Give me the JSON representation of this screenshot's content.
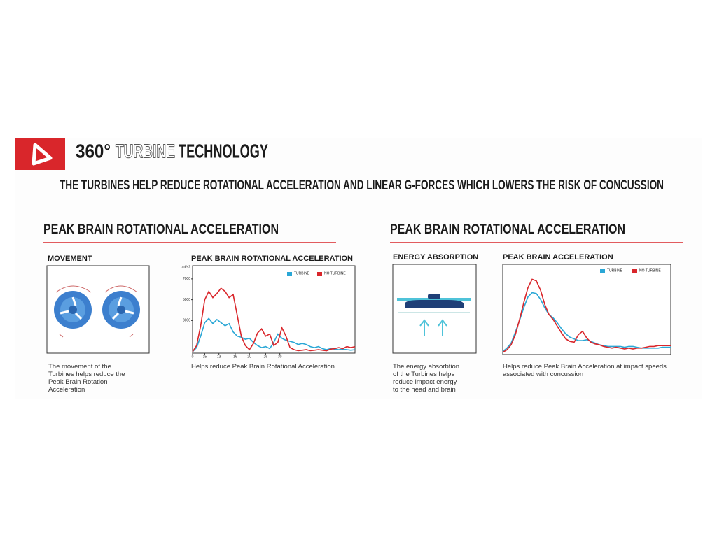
{
  "header": {
    "title_parts": [
      "360°",
      "TURBINE",
      "TECHNOLOGY"
    ],
    "subtitle": "THE TURBINES HELP REDUCE ROTATIONAL ACCELERATION AND LINEAR G-FORCES WHICH LOWERS THE RISK OF CONCUSSION"
  },
  "sections": [
    {
      "heading": "PEAK BRAIN ROTATIONAL ACCELERATION",
      "illustration": {
        "label": "MOVEMENT",
        "caption": "The movement of the Turbines helps reduce the Peak Brain Rotation Acceleration"
      },
      "chart_data": {
        "type": "line",
        "title": "PEAK BRAIN ROTATIONAL ACCELERATION",
        "y_label": "rad/s2",
        "caption": "Helps reduce Peak Brain Rotational Acceleration",
        "x": [
          0,
          1,
          2,
          3,
          4,
          5,
          6,
          7,
          8,
          9,
          10,
          11,
          12,
          13,
          14,
          15,
          16,
          17,
          18,
          19,
          20,
          21,
          22,
          23,
          24,
          25,
          26,
          27,
          28,
          29,
          30,
          31,
          32,
          33,
          34,
          35,
          36,
          37,
          38,
          39,
          40
        ],
        "xlim": [
          0,
          40
        ],
        "xticks": [
          {
            "value": 0,
            "label": "0"
          },
          {
            "value": 3,
            "label": "15"
          },
          {
            "value": 6.5,
            "label": "13"
          },
          {
            "value": 10.5,
            "label": "16"
          },
          {
            "value": 14,
            "label": "20"
          },
          {
            "value": 18,
            "label": "26"
          },
          {
            "value": 21.5,
            "label": "30"
          }
        ],
        "ylim": [
          0,
          8000
        ],
        "yticks": [
          3000,
          5000,
          7000
        ],
        "series": [
          {
            "name": "TURBINE",
            "color": "#2aa7d6",
            "values": [
              0,
              400,
              1500,
              2800,
              3200,
              2700,
              3100,
              2800,
              2500,
              2700,
              1900,
              1500,
              1400,
              1200,
              1300,
              900,
              600,
              400,
              500,
              300,
              900,
              1700,
              1300,
              1100,
              1000,
              900,
              700,
              800,
              700,
              500,
              400,
              500,
              300,
              200,
              300,
              250,
              200,
              250,
              200,
              150,
              200
            ]
          },
          {
            "name": "NO TURBINE",
            "color": "#d9262b",
            "values": [
              0,
              600,
              2500,
              5000,
              5800,
              5200,
              5600,
              6100,
              5800,
              5200,
              5500,
              3500,
              1500,
              600,
              200,
              800,
              1800,
              2200,
              1500,
              1700,
              600,
              900,
              2300,
              1500,
              400,
              200,
              100,
              150,
              200,
              100,
              150,
              200,
              150,
              100,
              250,
              300,
              400,
              300,
              500,
              400,
              500
            ]
          }
        ]
      }
    },
    {
      "heading": "PEAK BRAIN ROTATIONAL ACCELERATION",
      "illustration": {
        "label": "ENERGY ABSORPTION",
        "caption": "The energy absorbtion of the Turbines helps reduce impact energy to the head and brain"
      },
      "chart_data": {
        "type": "line",
        "title": "PEAK BRAIN ACCELERATION",
        "caption": "Helps reduce Peak Brain Acceleration at impact speeds associated with concussion",
        "x": [
          0,
          1,
          2,
          3,
          4,
          5,
          6,
          7,
          8,
          9,
          10,
          11,
          12,
          13,
          14,
          15,
          16,
          17,
          18,
          19,
          20,
          21,
          22,
          23,
          24,
          25,
          26,
          27,
          28,
          29,
          30,
          31,
          32,
          33,
          34,
          35,
          36,
          37,
          38,
          39,
          40
        ],
        "xlim": [
          0,
          40
        ],
        "ylim": [
          0,
          100
        ],
        "series": [
          {
            "name": "TURBINE",
            "color": "#2aa7d6",
            "values": [
              2,
              6,
              12,
              25,
              39,
              54,
              67,
              72,
              71,
              64,
              54,
              46,
              42,
              36,
              29,
              23,
              19,
              17,
              15,
              15,
              16,
              14,
              12,
              10,
              9,
              8,
              8,
              8,
              8,
              7,
              8,
              8,
              7,
              6,
              6,
              6,
              6,
              6,
              7,
              7,
              7
            ]
          },
          {
            "name": "NO TURBINE",
            "color": "#d9262b",
            "values": [
              1,
              4,
              10,
              22,
              40,
              60,
              78,
              88,
              86,
              75,
              58,
              46,
              40,
              32,
              24,
              17,
              14,
              13,
              22,
              26,
              18,
              13,
              11,
              10,
              8,
              7,
              6,
              7,
              6,
              5,
              6,
              5,
              6,
              6,
              7,
              8,
              8,
              9,
              9,
              9,
              9
            ]
          }
        ]
      }
    }
  ]
}
